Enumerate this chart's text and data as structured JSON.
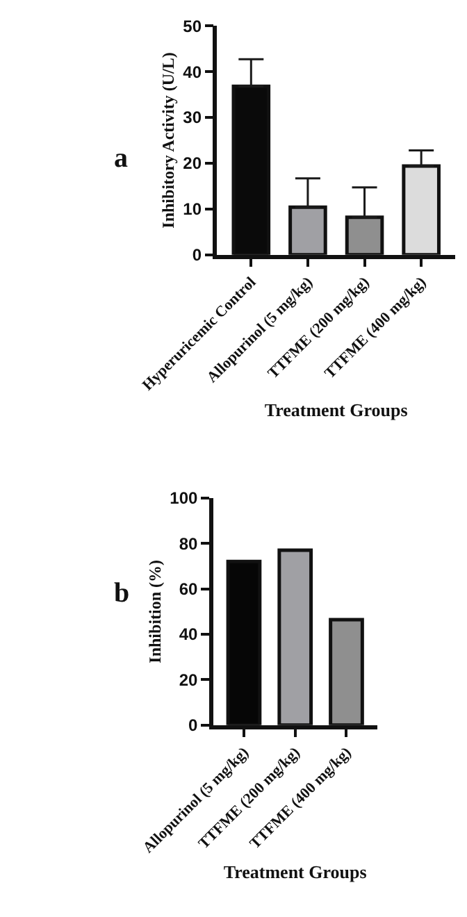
{
  "chart_data": [
    {
      "type": "bar",
      "xlabel": "Treatment Groups",
      "ylabel": "Inhibitory Activity (U/L)",
      "annotations": [
        "a"
      ],
      "categories": [
        "Hyperuricemic Control",
        "Allopurinol (5 mg/kg)",
        "TTFME (200 mg/kg)",
        "TTFME (400 mg/kg)"
      ],
      "values": [
        36.8,
        10.4,
        8.2,
        19.4
      ],
      "errors": [
        [
          36.8,
          42.7
        ],
        [
          10.4,
          16.7
        ],
        [
          8.2,
          14.7
        ],
        [
          19.4,
          22.8
        ]
      ],
      "colors": [
        "#0a0a0a",
        "#a0a0a4",
        "#8f8f8f",
        "#dcdcdc"
      ],
      "ylim": [
        0,
        50
      ],
      "yticks": [
        0,
        10,
        20,
        30,
        40,
        50
      ]
    },
    {
      "type": "bar",
      "xlabel": "Treatment Groups",
      "ylabel": "Inhibition (%)",
      "annotations": [
        "b"
      ],
      "categories": [
        "Allopurinol (5 mg/kg)",
        "TTFME (200 mg/kg)",
        "TTFME (400 mg/kg)"
      ],
      "values": [
        72,
        77,
        46.4
      ],
      "colors": [
        "#060606",
        "#a0a0a4",
        "#8f8f8f"
      ],
      "ylim": [
        0,
        100
      ],
      "yticks": [
        0,
        20,
        40,
        60,
        80,
        100
      ]
    }
  ]
}
